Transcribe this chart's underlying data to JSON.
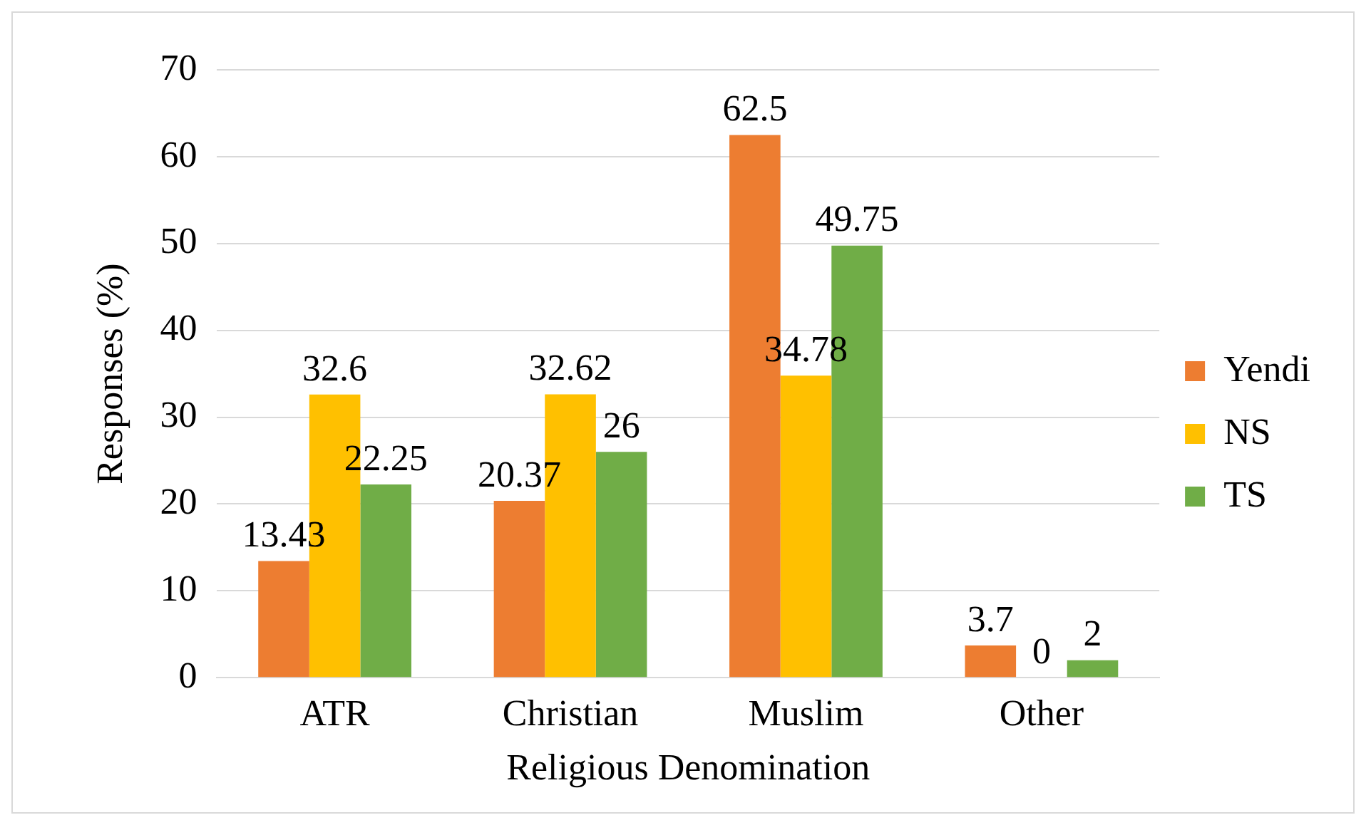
{
  "chart_data": {
    "type": "bar",
    "xlabel": "Religious Denomination",
    "ylabel": "Responses (%)",
    "categories": [
      "ATR",
      "Christian",
      "Muslim",
      "Other"
    ],
    "series": [
      {
        "name": "Yendi",
        "color": "#ed7d31",
        "values": [
          13.43,
          20.37,
          62.5,
          3.7
        ]
      },
      {
        "name": "NS",
        "color": "#ffc000",
        "values": [
          32.6,
          32.62,
          34.78,
          0
        ]
      },
      {
        "name": "TS",
        "color": "#70ad47",
        "values": [
          22.25,
          26,
          49.75,
          2
        ]
      }
    ],
    "ylim": [
      0,
      70
    ],
    "yticks": [
      0,
      10,
      20,
      30,
      40,
      50,
      60,
      70
    ],
    "grid": "y",
    "legend": "right",
    "data_labels": true
  }
}
